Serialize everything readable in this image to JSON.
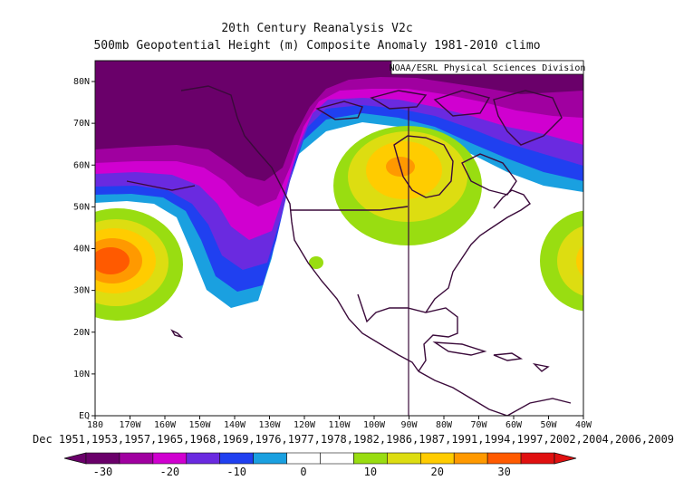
{
  "title_line1": "20th Century Reanalysis V2c",
  "title_line2": "500mb Geopotential Height (m) Composite Anomaly 1981-2010 climo",
  "credit": "NOAA/ESRL Physical Sciences Division",
  "dates_label": "Dec 1951,1953,1957,1965,1968,1969,1976,1977,1978,1982,1986,1987,1991,1994,1997,2002,2004,2006,2009",
  "lat_ticks": [
    "80N",
    "70N",
    "60N",
    "50N",
    "40N",
    "30N",
    "20N",
    "10N",
    "EQ"
  ],
  "lon_ticks": [
    "180",
    "170W",
    "160W",
    "150W",
    "140W",
    "130W",
    "120W",
    "110W",
    "100W",
    "90W",
    "80W",
    "70W",
    "60W",
    "50W",
    "40W"
  ],
  "colorbar": {
    "labels": [
      "-30",
      "-20",
      "-10",
      "0",
      "10",
      "20",
      "30"
    ],
    "colors": [
      "#6a006a",
      "#a000a0",
      "#d000d0",
      "#6a2ae0",
      "#2040f0",
      "#1aa0e0",
      "#ffffff",
      "#ffffff",
      "#99dd11",
      "#dddd11",
      "#ffcc00",
      "#ff9900",
      "#ff5a00",
      "#e01010"
    ]
  },
  "chart_data": {
    "type": "heatmap",
    "variable": "500mb Geopotential Height (m) Composite Anomaly",
    "lat_range": [
      "EQ",
      "85N"
    ],
    "lon_range": [
      "180",
      "40W"
    ],
    "color_range": [
      -30,
      30
    ],
    "features": [
      {
        "region": "Arctic / Alaska / northern Canada",
        "anomaly_min": -30
      },
      {
        "region": "NE Pacific trough near 140W, 35N",
        "anomaly_min": -20
      },
      {
        "region": "Hudson Bay ridge near 90W, 60N",
        "anomaly_max": 25
      },
      {
        "region": "Central Pacific near 175W, 37N",
        "anomaly_max": 25
      },
      {
        "region": "Western Atlantic near 40W, 38N",
        "anomaly_max": 15
      }
    ]
  }
}
